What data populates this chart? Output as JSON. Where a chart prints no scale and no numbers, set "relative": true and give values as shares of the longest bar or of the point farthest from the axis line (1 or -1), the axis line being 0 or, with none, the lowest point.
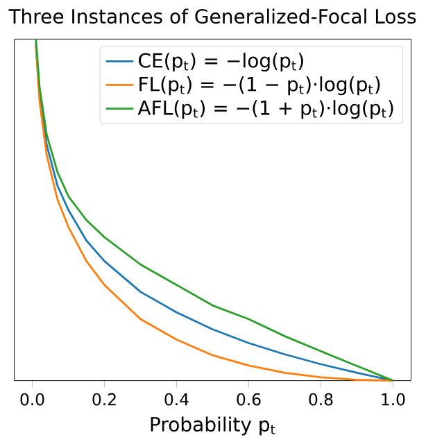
{
  "chart_data": {
    "type": "line",
    "title": "Three Instances of Generalized-Focal Loss",
    "xlabel": "Probability p$_{t}$",
    "x": [
      0.01,
      0.02,
      0.04,
      0.07,
      0.1,
      0.15,
      0.2,
      0.3,
      0.4,
      0.5,
      0.6,
      0.7,
      0.8,
      0.9,
      1.0
    ],
    "relative": true,
    "xlim": [
      -0.05,
      1.05
    ],
    "xticks": [
      {
        "value": 0,
        "label": "0.0"
      },
      0.2,
      0.4,
      0.6,
      0.8,
      {
        "value": 1,
        "label": "1.0"
      }
    ],
    "legend": "top right",
    "grid": false,
    "series": [
      {
        "name": "CE(p$_{t}$) = −log(p$_{t}$)",
        "color": "#1f77b4",
        "values": [
          0.99,
          0.84,
          0.69,
          0.57,
          0.5,
          0.41,
          0.35,
          0.26,
          0.2,
          0.15,
          0.11,
          0.077,
          0.048,
          0.023,
          0
        ]
      },
      {
        "name": "FL(p$_{t}$) = −(1 − p$_{t}$)·log(p$_{t}$)",
        "color": "#ff7f0e",
        "values": [
          0.98,
          0.82,
          0.66,
          0.53,
          0.45,
          0.35,
          0.28,
          0.18,
          0.12,
          0.074,
          0.044,
          0.023,
          0.0096,
          0.0023,
          0
        ]
      },
      {
        "name": "AFL(p$_{t}$) = −(1 + p$_{t}$)·log(p$_{t}$)",
        "color": "#2ca02c",
        "values": [
          1,
          0.86,
          0.72,
          0.61,
          0.54,
          0.47,
          0.42,
          0.34,
          0.28,
          0.22,
          0.18,
          0.13,
          0.086,
          0.043,
          0
        ]
      }
    ]
  }
}
